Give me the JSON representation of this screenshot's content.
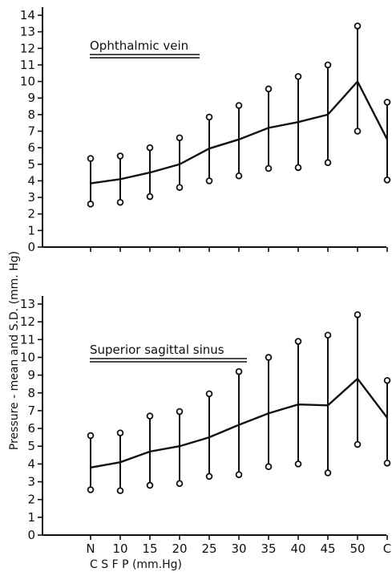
{
  "chart_data": {
    "type": "line",
    "ylabel": "Pressure - mean and S.D. (mm. Hg)",
    "xlabel": "C S F P (mm.Hg)",
    "categories": [
      "N",
      "10",
      "15",
      "20",
      "25",
      "30",
      "35",
      "40",
      "45",
      "50",
      "C"
    ],
    "panels": [
      {
        "title": "Ophthalmic vein",
        "ylim": [
          0,
          14
        ],
        "yticks": [
          "0",
          "1",
          "2",
          "3",
          "4",
          "5",
          "6",
          "7",
          "8",
          "9",
          "10",
          "11",
          "12",
          "13",
          "14"
        ],
        "series": [
          {
            "mean": [
              3.85,
              4.1,
              4.5,
              5.0,
              5.95,
              6.5,
              7.2,
              7.55,
              8.0,
              10.0,
              6.5
            ],
            "upper": [
              5.35,
              5.5,
              6.0,
              6.6,
              7.85,
              8.55,
              9.55,
              10.3,
              11.0,
              13.35,
              8.75
            ],
            "lower": [
              2.6,
              2.7,
              3.05,
              3.6,
              4.0,
              4.3,
              4.75,
              4.8,
              5.1,
              7.0,
              4.05
            ]
          }
        ]
      },
      {
        "title": "Superior sagittal sinus",
        "ylim": [
          0,
          13
        ],
        "yticks": [
          "0",
          "1",
          "2",
          "3",
          "4",
          "5",
          "6",
          "7",
          "8",
          "9",
          "10",
          "11",
          "12",
          "13"
        ],
        "series": [
          {
            "mean": [
              3.8,
              4.1,
              4.7,
              5.0,
              5.5,
              6.2,
              6.85,
              7.35,
              7.3,
              8.8,
              6.6
            ],
            "upper": [
              5.6,
              5.75,
              6.7,
              6.95,
              7.95,
              9.2,
              10.0,
              10.9,
              11.25,
              12.4,
              8.7
            ],
            "lower": [
              2.55,
              2.5,
              2.8,
              2.9,
              3.3,
              3.4,
              3.85,
              4.0,
              3.5,
              5.1,
              4.05
            ]
          }
        ]
      }
    ]
  }
}
